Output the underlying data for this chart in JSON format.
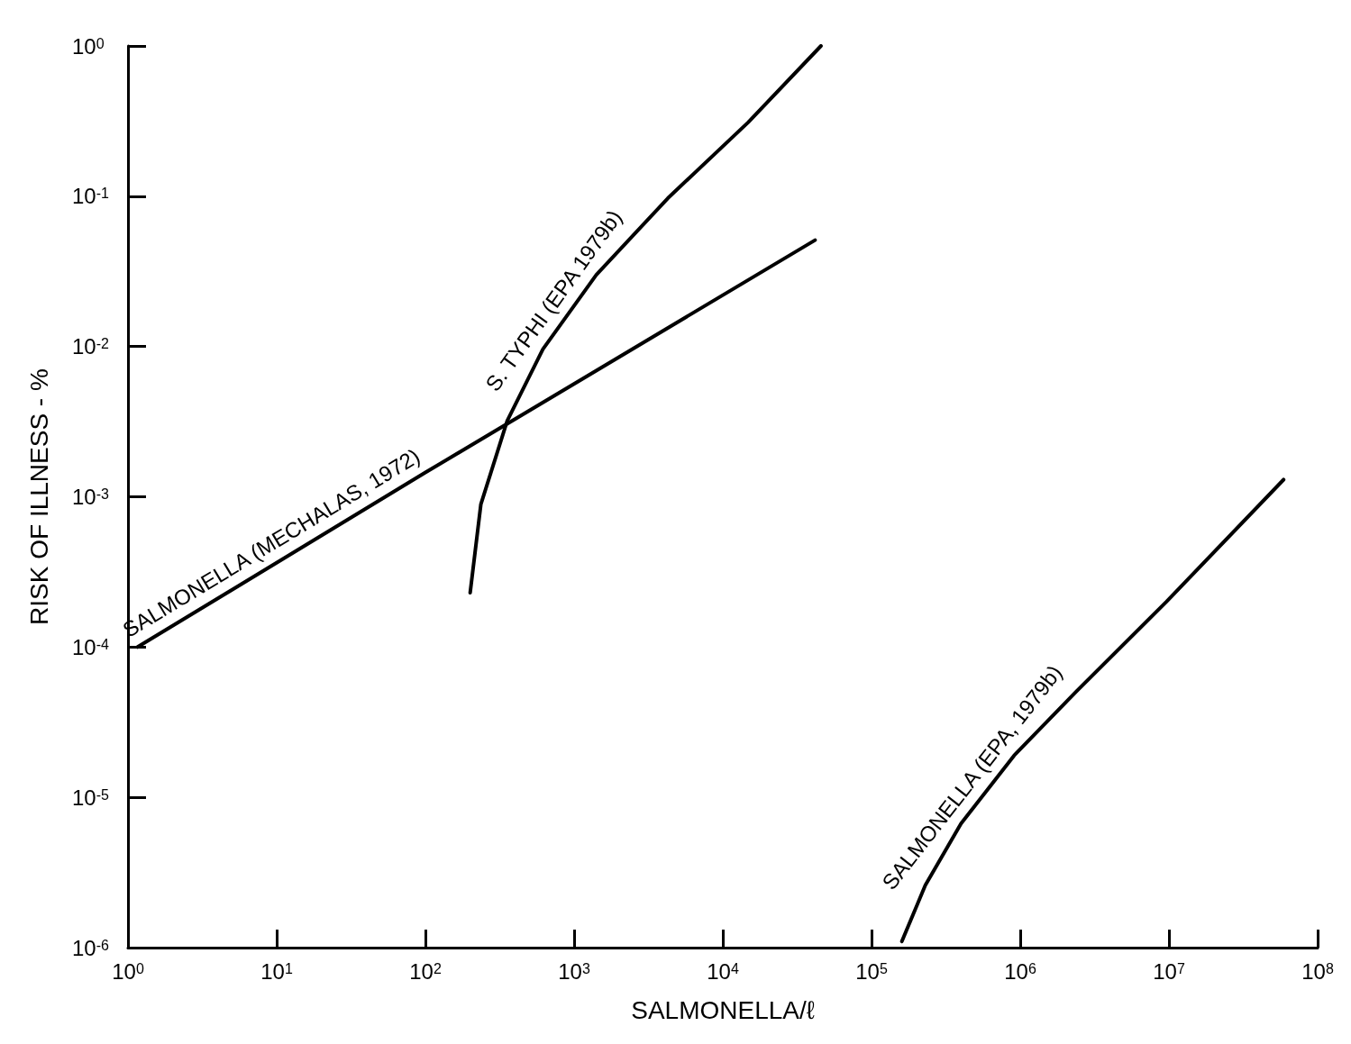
{
  "chart_data": {
    "type": "line",
    "xlabel": "SALMONELLA/ℓ",
    "ylabel": "RISK OF ILLNESS - %",
    "log": "xy",
    "xlim": [
      1,
      100000000
    ],
    "ylim": [
      1e-06,
      1
    ],
    "xticks": [
      {
        "value": 1,
        "label": "10$^{0}$"
      },
      {
        "value": 10,
        "label": "10$^{1}$"
      },
      {
        "value": 100,
        "label": "10$^{2}$"
      },
      {
        "value": 1000,
        "label": "10$^{3}$"
      },
      {
        "value": 10000,
        "label": "10$^{4}$"
      },
      {
        "value": 100000,
        "label": "10$^{5}$"
      },
      {
        "value": 1000000,
        "label": "10$^{6}$"
      },
      {
        "value": 10000000,
        "label": "10$^{7}$"
      },
      {
        "value": 100000000,
        "label": "10$^{8}$"
      }
    ],
    "yticks": [
      {
        "value": 1e-06,
        "label": "10$^{-6}$"
      },
      {
        "value": 1e-05,
        "label": "10$^{-5}$"
      },
      {
        "value": 0.0001,
        "label": "10$^{-4}$"
      },
      {
        "value": 0.001,
        "label": "10$^{-3}$"
      },
      {
        "value": 0.01,
        "label": "10$^{-2}$"
      },
      {
        "value": 0.1,
        "label": "10$^{-1}$"
      },
      {
        "value": 1,
        "label": "10$^{0}$"
      }
    ],
    "grid": false,
    "legend": false,
    "marker": "none",
    "line_style": "solid",
    "series": [
      {
        "name": "SALMONELLA (MECHALAS, 1972)",
        "color": "#000000",
        "x": [
          1.16,
          100,
          41700
        ],
        "values": [
          0.0001,
          0.00145,
          0.051
        ]
      },
      {
        "name": "S. TYPHI (EPA 1979b)",
        "color": "#000000",
        "x": [
          200,
          236,
          355,
          617,
          1410,
          4270,
          14800,
          45700
        ],
        "values": [
          0.00023,
          0.00089,
          0.0032,
          0.0096,
          0.03,
          0.097,
          0.31,
          1
        ]
      },
      {
        "name": "SALMONELLA (EPA, 1979b)",
        "color": "#000000",
        "x": [
          160000,
          230000,
          400000,
          910000,
          2400000,
          9600000,
          59000000
        ],
        "values": [
          1.1e-06,
          2.6e-06,
          6.7e-06,
          1.9e-05,
          5.1e-05,
          0.0002,
          0.0013
        ]
      }
    ]
  }
}
